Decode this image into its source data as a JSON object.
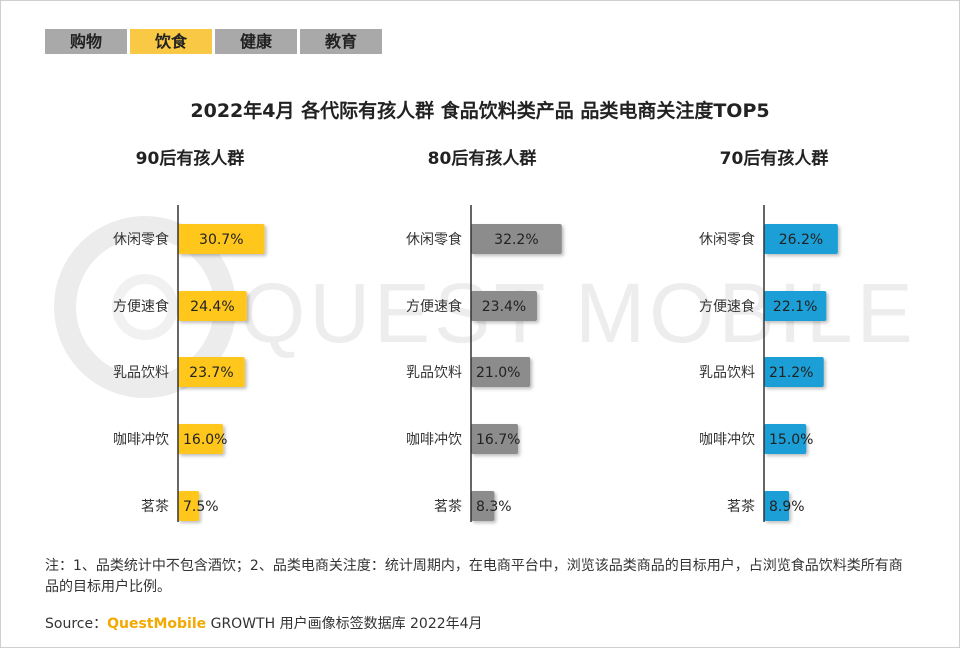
{
  "tabs": [
    {
      "label": "购物",
      "active": false
    },
    {
      "label": "饮食",
      "active": true
    },
    {
      "label": "健康",
      "active": false
    },
    {
      "label": "教育",
      "active": false
    }
  ],
  "watermark_text": "QUEST MOBILE",
  "chart_data": [
    {
      "type": "bar",
      "orientation": "horizontal",
      "title": "90后有孩人群",
      "categories": [
        "休闲零食",
        "方便速食",
        "乳品饮料",
        "咖啡冲饮",
        "茗茶"
      ],
      "values": [
        30.7,
        24.4,
        23.7,
        16.0,
        7.5
      ],
      "labels": [
        "30.7%",
        "24.4%",
        "23.7%",
        "16.0%",
        "7.5%"
      ],
      "color": "#ffc61a",
      "xlim": [
        0,
        35
      ]
    },
    {
      "type": "bar",
      "orientation": "horizontal",
      "title": "80后有孩人群",
      "categories": [
        "休闲零食",
        "方便速食",
        "乳品饮料",
        "咖啡冲饮",
        "茗茶"
      ],
      "values": [
        32.2,
        23.4,
        21.0,
        16.7,
        8.3
      ],
      "labels": [
        "32.2%",
        "23.4%",
        "21.0%",
        "16.7%",
        "8.3%"
      ],
      "color": "#8c8c8c",
      "xlim": [
        0,
        35
      ]
    },
    {
      "type": "bar",
      "orientation": "horizontal",
      "title": "70后有孩人群",
      "categories": [
        "休闲零食",
        "方便速食",
        "乳品饮料",
        "咖啡冲饮",
        "茗茶"
      ],
      "values": [
        26.2,
        22.1,
        21.2,
        15.0,
        8.9
      ],
      "labels": [
        "26.2%",
        "22.1%",
        "21.2%",
        "15.0%",
        "8.9%"
      ],
      "color": "#1e9fd6",
      "xlim": [
        0,
        35
      ]
    }
  ],
  "main_title": "2022年4月 各代际有孩人群 食品饮料类产品 品类电商关注度TOP5",
  "note": "注：1、品类统计中不包含酒饮；2、品类电商关注度：统计周期内，在电商平台中，浏览该品类商品的目标用户，占浏览食品饮料类所有商品的目标用户比例。",
  "source": {
    "prefix": "Source：",
    "brand": "QuestMobile",
    "suffix": " GROWTH 用户画像标签数据库 2022年4月"
  }
}
